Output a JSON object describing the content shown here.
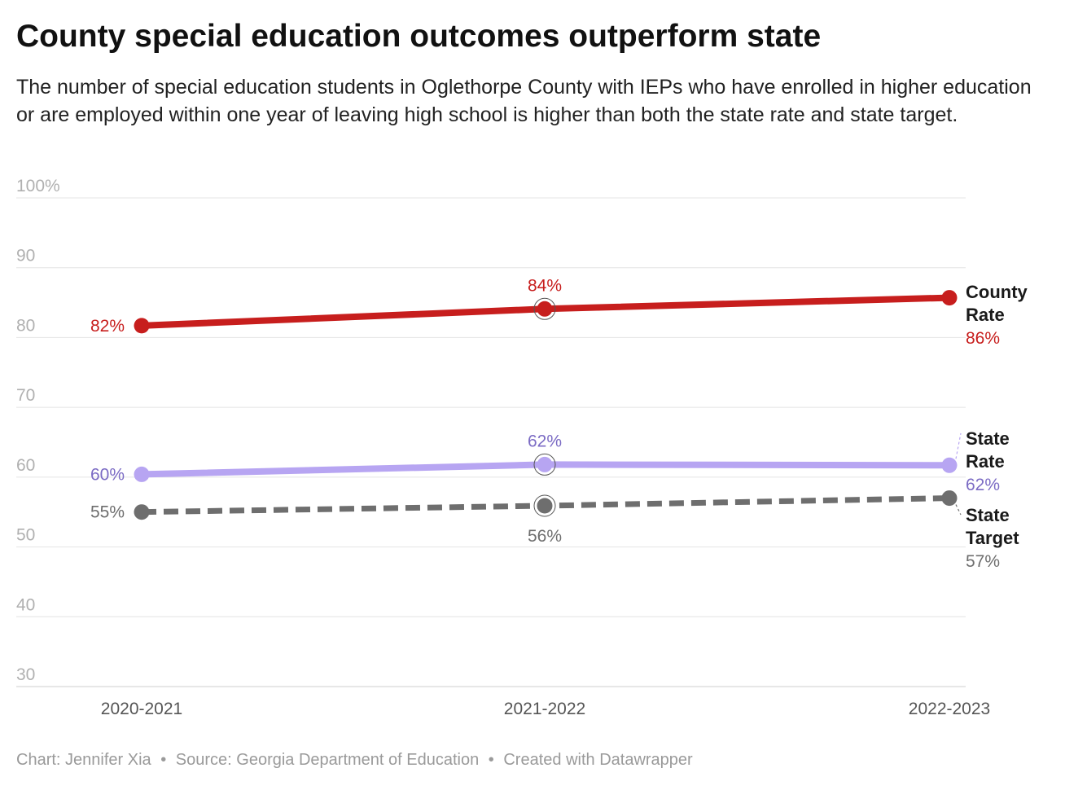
{
  "title": "County special education outcomes outperform state",
  "subtitle": "The number of special education students in Oglethorpe County with IEPs who have enrolled in higher education or are employed within one year of leaving high school is higher than both the state rate and state target.",
  "footer": {
    "chart_credit": "Chart: Jennifer Xia",
    "source": "Source: Georgia Department of Education",
    "tool": "Created with Datawrapper",
    "separator": "•"
  },
  "chart_data": {
    "type": "line",
    "categories": [
      "2020-2021",
      "2021-2022",
      "2022-2023"
    ],
    "ylim": [
      30,
      100
    ],
    "yticks": [
      30,
      40,
      50,
      60,
      70,
      80,
      90,
      100
    ],
    "ytick_labels": [
      "30",
      "40",
      "50",
      "60",
      "70",
      "80",
      "90",
      "100%"
    ],
    "grid": true,
    "legend": "direct labels at right end of lines",
    "series": [
      {
        "name": "County Rate",
        "label_lines": [
          "County",
          "Rate"
        ],
        "values": [
          81.7,
          84.1,
          85.7
        ],
        "value_labels": [
          "82%",
          "84%",
          "86%"
        ],
        "color": "#c71e1d",
        "text_color": "#c71e1d",
        "dashed": false
      },
      {
        "name": "State Rate",
        "label_lines": [
          "State",
          "Rate"
        ],
        "values": [
          60.4,
          61.8,
          61.7
        ],
        "value_labels": [
          "60%",
          "62%",
          "62%"
        ],
        "color": "#b7a5f2",
        "text_color": "#7b6bc4",
        "dashed": false
      },
      {
        "name": "State Target",
        "label_lines": [
          "State",
          "Target"
        ],
        "values": [
          55,
          55.9,
          57
        ],
        "value_labels": [
          "55%",
          "56%",
          "57%"
        ],
        "color": "#6e6e6e",
        "text_color": "#6e6e6e",
        "dashed": true
      }
    ]
  }
}
